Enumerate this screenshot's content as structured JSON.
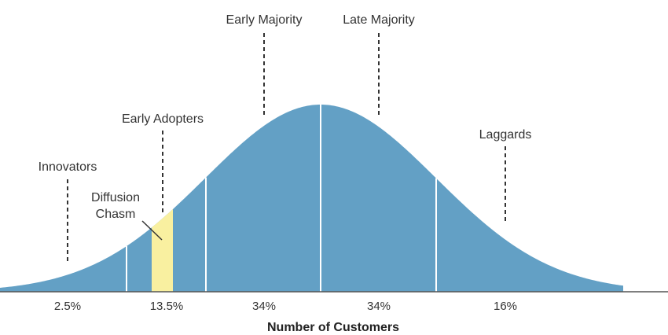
{
  "colors": {
    "curve_fill": "#63a0c5",
    "chasm_fill": "#f9f0a0",
    "divider": "#ffffff",
    "text": "#333333",
    "axis": "#555555"
  },
  "axis_title": "Number of Customers",
  "chasm_label_line1": "Diffusion",
  "chasm_label_line2": "Chasm",
  "segments": [
    {
      "name": "Innovators",
      "percent": "2.5%"
    },
    {
      "name": "Early Adopters",
      "percent": "13.5%"
    },
    {
      "name": "Early Majority",
      "percent": "34%"
    },
    {
      "name": "Late Majority",
      "percent": "34%"
    },
    {
      "name": "Laggards",
      "percent": "16%"
    }
  ]
}
